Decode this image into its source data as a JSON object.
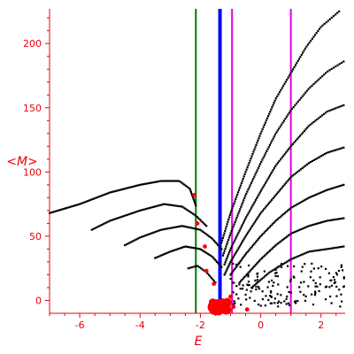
{
  "chart_data": {
    "type": "scatter",
    "title": "",
    "xlabel": "E",
    "ylabel": "<M>",
    "xlim": [
      -7,
      2.8
    ],
    "ylim": [
      -10,
      227
    ],
    "x_ticks": [
      -6,
      -4,
      -2,
      0,
      2
    ],
    "y_ticks": [
      0,
      50,
      100,
      150,
      200
    ],
    "tick_labels": {
      "x": [
        "-6",
        "-4",
        "-2",
        "0",
        "2"
      ],
      "y": [
        "0",
        "50",
        "100",
        "150",
        "200"
      ]
    },
    "grid": false,
    "colors": {
      "axis": "#e8000b",
      "points": "#000000",
      "highlight": "#ff0000",
      "line_green": "#007a00",
      "line_blue": "#0000ff",
      "line_magenta": "#e000e0"
    },
    "vertical_lines": [
      {
        "x": -2.15,
        "color": "#007a00",
        "width": 2
      },
      {
        "x": -1.35,
        "color": "#0000ff",
        "width": 4
      },
      {
        "x": -0.95,
        "color": "#e000e0",
        "width": 2
      },
      {
        "x": 1.0,
        "color": "#e000e0",
        "width": 2
      }
    ],
    "curves": [
      {
        "points": [
          [
            -7,
            68
          ],
          [
            -6,
            75
          ],
          [
            -5,
            84
          ],
          [
            -4,
            90
          ],
          [
            -3.3,
            93
          ],
          [
            -2.7,
            93
          ],
          [
            -2.35,
            87
          ],
          [
            -2.15,
            74
          ]
        ],
        "count": 95
      },
      {
        "points": [
          [
            -5.6,
            55
          ],
          [
            -5,
            62
          ],
          [
            -4,
            70
          ],
          [
            -3.2,
            75
          ],
          [
            -2.6,
            73
          ],
          [
            -2.15,
            66
          ],
          [
            -1.8,
            58
          ]
        ],
        "count": 70
      },
      {
        "points": [
          [
            -4.5,
            43
          ],
          [
            -4,
            49
          ],
          [
            -3.3,
            55
          ],
          [
            -2.6,
            58
          ],
          [
            -2.0,
            55
          ],
          [
            -1.6,
            48
          ],
          [
            -1.3,
            40
          ]
        ],
        "count": 60
      },
      {
        "points": [
          [
            -3.5,
            33
          ],
          [
            -3,
            38
          ],
          [
            -2.5,
            42
          ],
          [
            -2.0,
            40
          ],
          [
            -1.6,
            34
          ],
          [
            -1.3,
            26
          ]
        ],
        "count": 45
      },
      {
        "points": [
          [
            -2.4,
            25
          ],
          [
            -2.1,
            27
          ],
          [
            -1.8,
            22
          ],
          [
            -1.5,
            14
          ]
        ],
        "count": 18
      },
      {
        "points": [
          [
            -1.3,
            45
          ],
          [
            -1.0,
            68
          ],
          [
            -0.5,
            100
          ],
          [
            0,
            130
          ],
          [
            0.5,
            157
          ],
          [
            1.0,
            177
          ],
          [
            1.5,
            197
          ],
          [
            2,
            213
          ],
          [
            2.6,
            225
          ]
        ],
        "count": 110
      },
      {
        "points": [
          [
            -1.25,
            35
          ],
          [
            -1.0,
            52
          ],
          [
            -0.5,
            82
          ],
          [
            0,
            107
          ],
          [
            0.5,
            130
          ],
          [
            1.0,
            148
          ],
          [
            1.6,
            165
          ],
          [
            2.2,
            178
          ],
          [
            2.75,
            186
          ]
        ],
        "count": 100
      },
      {
        "points": [
          [
            -1.2,
            28
          ],
          [
            -1.0,
            40
          ],
          [
            -0.5,
            64
          ],
          [
            0,
            85
          ],
          [
            0.5,
            105
          ],
          [
            1.0,
            120
          ],
          [
            1.6,
            136
          ],
          [
            2.2,
            147
          ],
          [
            2.75,
            152
          ]
        ],
        "count": 95
      },
      {
        "points": [
          [
            -1.2,
            20
          ],
          [
            -1.0,
            30
          ],
          [
            -0.5,
            50
          ],
          [
            0,
            68
          ],
          [
            0.5,
            82
          ],
          [
            1.0,
            96
          ],
          [
            1.6,
            107
          ],
          [
            2.2,
            115
          ],
          [
            2.75,
            119
          ]
        ],
        "count": 90
      },
      {
        "points": [
          [
            -1.0,
            20
          ],
          [
            -0.5,
            36
          ],
          [
            0,
            50
          ],
          [
            0.5,
            62
          ],
          [
            1.0,
            72
          ],
          [
            1.6,
            80
          ],
          [
            2.2,
            86
          ],
          [
            2.75,
            90
          ]
        ],
        "count": 80
      },
      {
        "points": [
          [
            -0.7,
            14
          ],
          [
            0,
            32
          ],
          [
            0.5,
            43
          ],
          [
            1.0,
            52
          ],
          [
            1.6,
            58
          ],
          [
            2.2,
            62
          ],
          [
            2.75,
            64
          ]
        ],
        "count": 70
      },
      {
        "points": [
          [
            -0.3,
            10
          ],
          [
            0.3,
            22
          ],
          [
            1.0,
            32
          ],
          [
            1.6,
            38
          ],
          [
            2.2,
            40
          ],
          [
            2.75,
            42
          ]
        ],
        "count": 55
      }
    ],
    "noise": {
      "seed": 7,
      "count": 160,
      "x_range": [
        -1.0,
        2.8
      ],
      "y_range": [
        -5,
        30
      ]
    },
    "cluster": {
      "seed": 3,
      "count": 70,
      "center": [
        -1.35,
        -5
      ],
      "spread": [
        0.28,
        4
      ]
    },
    "highlight_points": [
      [
        -2.2,
        82
      ],
      [
        -2.1,
        60
      ],
      [
        -1.85,
        42
      ],
      [
        -1.8,
        23
      ],
      [
        -1.55,
        13
      ],
      [
        -1.0,
        3
      ],
      [
        -0.45,
        -7
      ],
      [
        -0.9,
        -5
      ],
      [
        -1.3,
        -4
      ],
      [
        -1.55,
        -6
      ]
    ]
  }
}
